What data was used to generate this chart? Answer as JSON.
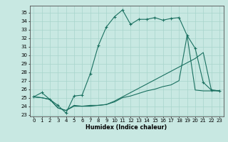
{
  "xlabel": "Humidex (Indice chaleur)",
  "xlim": [
    -0.5,
    23.5
  ],
  "ylim": [
    22.8,
    35.8
  ],
  "bg_color": "#c8e8e2",
  "line_color": "#1a7060",
  "grid_color": "#a8d5cc",
  "line1": [
    25.1,
    25.6,
    24.8,
    24.1,
    23.2,
    25.2,
    25.3,
    27.8,
    31.1,
    33.3,
    34.5,
    35.3,
    33.6,
    34.2,
    34.2,
    34.4,
    34.1,
    34.3,
    34.4,
    32.3,
    30.8,
    26.8,
    25.9,
    25.8
  ],
  "line2": [
    25.1,
    25.0,
    24.8,
    23.8,
    23.5,
    24.1,
    24.0,
    24.1,
    24.1,
    24.2,
    24.6,
    25.1,
    25.6,
    26.1,
    26.6,
    27.1,
    27.6,
    28.1,
    28.6,
    29.1,
    29.6,
    30.3,
    25.9,
    25.8
  ],
  "line3": [
    25.1,
    25.0,
    24.8,
    23.8,
    23.5,
    24.0,
    24.0,
    24.0,
    24.1,
    24.2,
    24.5,
    25.0,
    25.2,
    25.5,
    25.8,
    26.0,
    26.3,
    26.5,
    27.0,
    32.3,
    25.9,
    25.8,
    25.8,
    25.8
  ],
  "xticks": [
    0,
    1,
    2,
    3,
    4,
    5,
    6,
    7,
    8,
    9,
    10,
    11,
    12,
    13,
    14,
    15,
    16,
    17,
    18,
    19,
    20,
    21,
    22,
    23
  ],
  "yticks": [
    23,
    24,
    25,
    26,
    27,
    28,
    29,
    30,
    31,
    32,
    33,
    34,
    35
  ],
  "tick_fontsize": 5.0,
  "xlabel_fontsize": 5.8
}
